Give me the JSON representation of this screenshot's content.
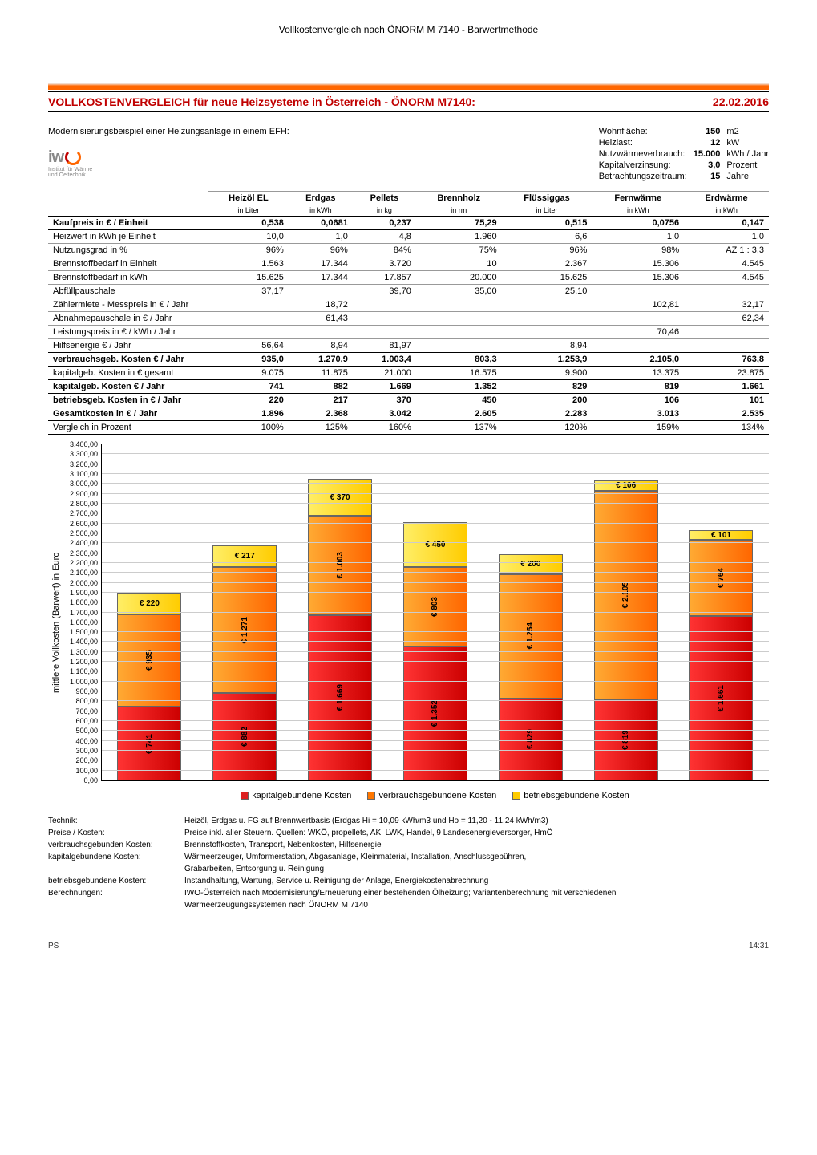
{
  "page_header": "Vollkostenvergleich nach ÖNORM M 7140 - Barwertmethode",
  "title": "VOLLKOSTENVERGLEICH für neue Heizsysteme in Österreich - ÖNORM M7140:",
  "date": "22.02.2016",
  "subtitle": "Modernisierungsbeispiel einer Heizungsanlage in einem EFH:",
  "logo": {
    "text": "iw",
    "subtitle1": "Institut für Wärme",
    "subtitle2": "und Oeltechnik"
  },
  "meta": [
    {
      "label": "Wohnfläche:",
      "value": "150",
      "unit": "m2"
    },
    {
      "label": "Heizlast:",
      "value": "12",
      "unit": "kW"
    },
    {
      "label": "Nutzwärmeverbrauch:",
      "value": "15.000",
      "unit": "kWh / Jahr"
    },
    {
      "label": "Kapitalverzinsung:",
      "value": "3,0",
      "unit": "Prozent"
    },
    {
      "label": "Betrachtungszeitraum:",
      "value": "15",
      "unit": "Jahre"
    }
  ],
  "columns": [
    {
      "name": "Heizöl EL",
      "unit": "in Liter"
    },
    {
      "name": "Erdgas",
      "unit": "in kWh"
    },
    {
      "name": "Pellets",
      "unit": "in kg"
    },
    {
      "name": "Brennholz",
      "unit": "in rm"
    },
    {
      "name": "Flüssiggas",
      "unit": "in Liter"
    },
    {
      "name": "Fernwärme",
      "unit": "in kWh"
    },
    {
      "name": "Erdwärme",
      "unit": "in kWh"
    }
  ],
  "rows": [
    {
      "label": "Kaufpreis in € / Einheit",
      "cells": [
        "0,538",
        "0,0681",
        "0,237",
        "75,29",
        "0,515",
        "0,0756",
        "0,147"
      ],
      "bold": true
    },
    {
      "label": "Heizwert in kWh je Einheit",
      "cells": [
        "10,0",
        "1,0",
        "4,8",
        "1.960",
        "6,6",
        "1,0",
        "1,0"
      ]
    },
    {
      "label": "Nutzungsgrad in %",
      "cells": [
        "96%",
        "96%",
        "84%",
        "75%",
        "96%",
        "98%",
        "AZ 1 : 3,3"
      ]
    },
    {
      "label": "Brennstoffbedarf in Einheit",
      "cells": [
        "1.563",
        "17.344",
        "3.720",
        "10",
        "2.367",
        "15.306",
        "4.545"
      ]
    },
    {
      "label": "Brennstoffbedarf in kWh",
      "cells": [
        "15.625",
        "17.344",
        "17.857",
        "20.000",
        "15.625",
        "15.306",
        "4.545"
      ]
    },
    {
      "label": "Abfüllpauschale",
      "cells": [
        "37,17",
        "",
        "39,70",
        "35,00",
        "25,10",
        "",
        ""
      ]
    },
    {
      "label": "Zählermiete - Messpreis in € / Jahr",
      "cells": [
        "",
        "18,72",
        "",
        "",
        "",
        "102,81",
        "32,17"
      ]
    },
    {
      "label": "Abnahmepauschale in € / Jahr",
      "cells": [
        "",
        "61,43",
        "",
        "",
        "",
        "",
        "62,34"
      ]
    },
    {
      "label": "Leistungspreis in € / kWh / Jahr",
      "cells": [
        "",
        "",
        "",
        "",
        "",
        "70,46",
        ""
      ]
    },
    {
      "label": "Hilfsenergie € / Jahr",
      "cells": [
        "56,64",
        "8,94",
        "81,97",
        "",
        "8,94",
        "",
        ""
      ],
      "dbl": true
    },
    {
      "label": "verbrauchsgeb. Kosten € / Jahr",
      "cells": [
        "935,0",
        "1.270,9",
        "1.003,4",
        "803,3",
        "1.253,9",
        "2.105,0",
        "763,8"
      ],
      "bold": true
    },
    {
      "label": "kapitalgeb. Kosten in € gesamt",
      "cells": [
        "9.075",
        "11.875",
        "21.000",
        "16.575",
        "9.900",
        "13.375",
        "23.875"
      ],
      "dbl": true
    },
    {
      "label": "kapitalgeb. Kosten € / Jahr",
      "cells": [
        "741",
        "882",
        "1.669",
        "1.352",
        "829",
        "819",
        "1.661"
      ],
      "bold": true
    },
    {
      "label": "betriebsgeb. Kosten in € / Jahr",
      "cells": [
        "220",
        "217",
        "370",
        "450",
        "200",
        "106",
        "101"
      ],
      "bold": true
    },
    {
      "label": "Gesamtkosten in € / Jahr",
      "cells": [
        "1.896",
        "2.368",
        "3.042",
        "2.605",
        "2.283",
        "3.013",
        "2.535"
      ],
      "bold": true
    },
    {
      "label": "Vergleich in Prozent",
      "cells": [
        "100%",
        "125%",
        "160%",
        "137%",
        "120%",
        "159%",
        "134%"
      ],
      "dbl": true
    }
  ],
  "chart": {
    "type": "stacked-bar",
    "ylabel": "mittlere Vollkosten (Barwert) in Euro",
    "ylim": [
      0,
      3400
    ],
    "ytick_step": 100,
    "colors": {
      "kapital": "#dd2222",
      "verbrauch": "#ff7700",
      "betrieb": "#ffcc00"
    },
    "legend": [
      {
        "key": "red",
        "label": "kapitalgebundene Kosten"
      },
      {
        "key": "orange",
        "label": "verbrauchsgebundene Kosten"
      },
      {
        "key": "yellow",
        "label": "betriebsgebundene Kosten"
      }
    ],
    "series": [
      {
        "name": "Heizöl EL",
        "kapital": 741,
        "kapital_label": "€ 741",
        "verbrauch": 935,
        "verbrauch_label": "€ 935",
        "betrieb": 220,
        "betrieb_label": "€ 220"
      },
      {
        "name": "Erdgas",
        "kapital": 882,
        "kapital_label": "€ 882",
        "verbrauch": 1271,
        "verbrauch_label": "€ 1.271",
        "betrieb": 217,
        "betrieb_label": "€ 217"
      },
      {
        "name": "Pellets",
        "kapital": 1669,
        "kapital_label": "€ 1.669",
        "verbrauch": 1003,
        "verbrauch_label": "€ 1.003",
        "betrieb": 370,
        "betrieb_label": "€ 370"
      },
      {
        "name": "Brennholz",
        "kapital": 1352,
        "kapital_label": "€ 1.352",
        "verbrauch": 803,
        "verbrauch_label": "€ 803",
        "betrieb": 450,
        "betrieb_label": "€ 450"
      },
      {
        "name": "Flüssiggas",
        "kapital": 829,
        "kapital_label": "€ 829",
        "verbrauch": 1254,
        "verbrauch_label": "€ 1.254",
        "betrieb": 200,
        "betrieb_label": "€ 200"
      },
      {
        "name": "Fernwärme",
        "kapital": 819,
        "kapital_label": "€ 819",
        "verbrauch": 2105,
        "verbrauch_label": "€ 2.105",
        "betrieb": 106,
        "betrieb_label": "€ 106"
      },
      {
        "name": "Erdwärme",
        "kapital": 1661,
        "kapital_label": "€ 1.661",
        "verbrauch": 764,
        "verbrauch_label": "€ 764",
        "betrieb": 101,
        "betrieb_label": "€ 101"
      }
    ]
  },
  "notes": [
    {
      "label": "Technik:",
      "text": "Heizöl, Erdgas u. FG auf Brennwertbasis (Erdgas Hi = 10,09 kWh/m3 und Ho = 11,20 - 11,24 kWh/m3)"
    },
    {
      "label": "Preise / Kosten:",
      "text": "Preise inkl. aller Steuern. Quellen: WKÖ, propellets, AK, LWK, Handel, 9 Landesenergieversorger, HmÖ"
    },
    {
      "label": "verbrauchsgebunden Kosten:",
      "text": "Brennstoffkosten, Transport, Nebenkosten, Hilfsenergie"
    },
    {
      "label": "kapitalgebundene Kosten:",
      "text": "Wärmeerzeuger, Umformerstation, Abgasanlage, Kleinmaterial, Installation, Anschlussgebühren,"
    },
    {
      "label": "",
      "text": "Grabarbeiten, Entsorgung u. Reinigung"
    },
    {
      "label": "betriebsgebundene Kosten:",
      "text": "Instandhaltung, Wartung, Service u. Reinigung der Anlage, Energiekostenabrechnung"
    },
    {
      "label": "Berechnungen:",
      "text": "IWO-Österreich nach Modernisierung/Erneuerung einer bestehenden Ölheizung; Variantenberechnung mit verschiedenen"
    },
    {
      "label": "",
      "text": "Wärmeerzeugungssystemen nach ÖNORM M 7140"
    }
  ],
  "footer": {
    "left": "PS",
    "right": "14:31"
  }
}
